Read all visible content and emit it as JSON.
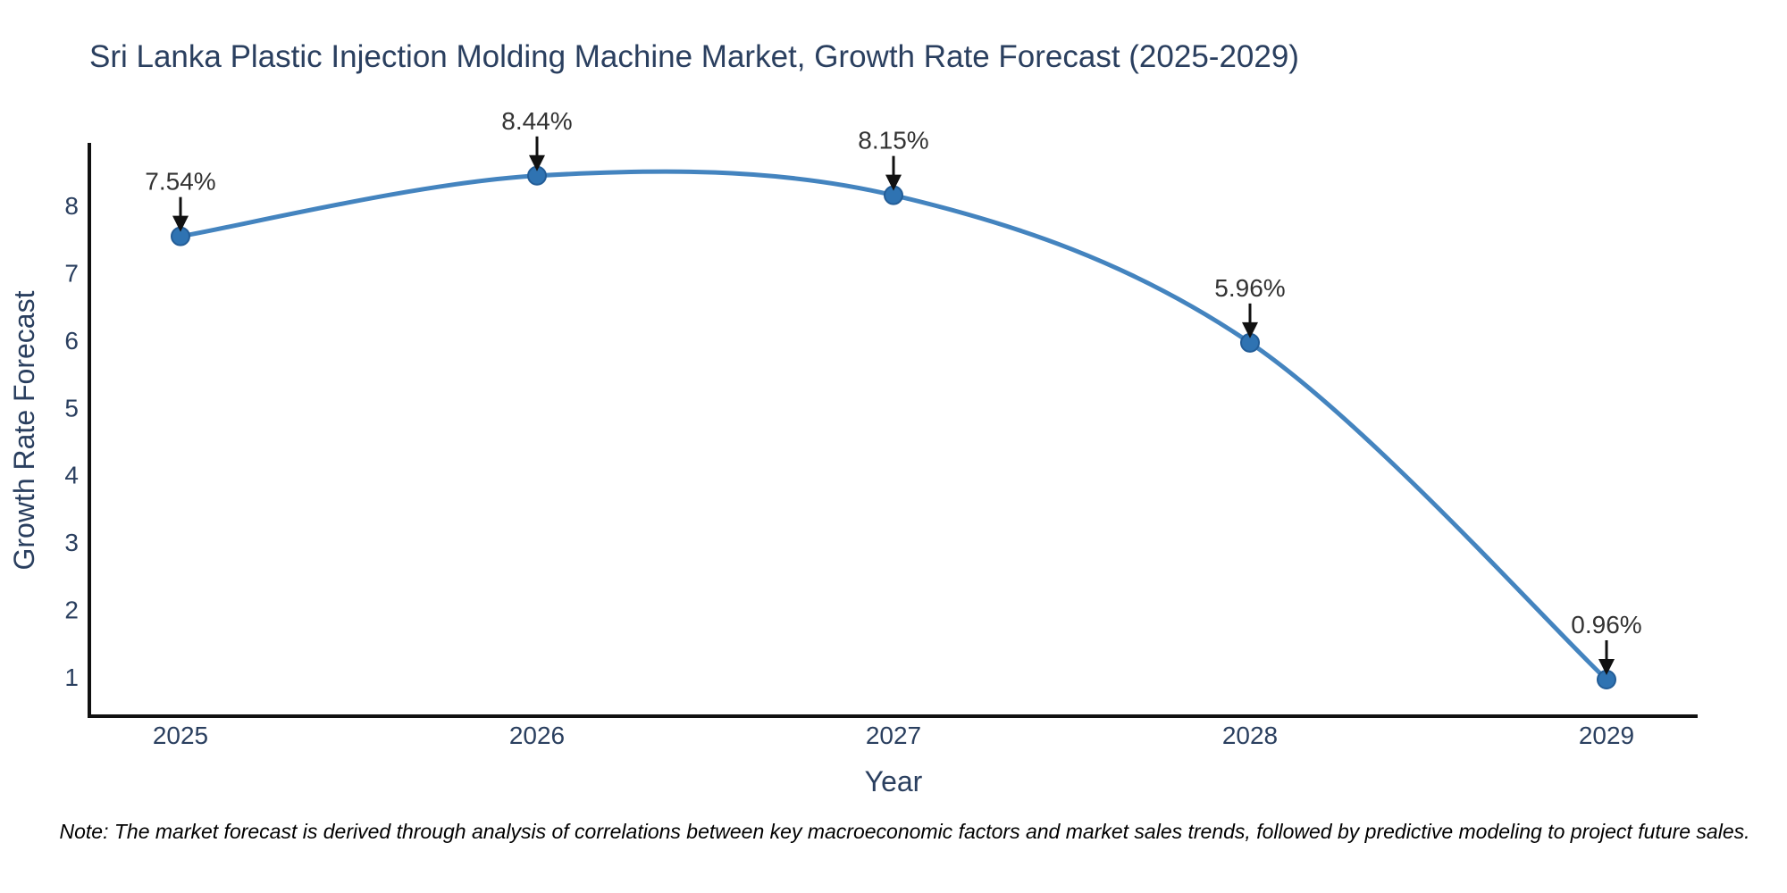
{
  "chart_data": {
    "type": "line",
    "title": "Sri Lanka Plastic Injection Molding Machine Market, Growth Rate Forecast (2025-2029)",
    "categories": [
      "2025",
      "2026",
      "2027",
      "2028",
      "2029"
    ],
    "series": [
      {
        "name": "Growth Rate Forecast",
        "values": [
          7.54,
          8.44,
          8.15,
          5.96,
          0.96
        ],
        "point_labels": [
          "7.54%",
          "8.44%",
          "8.15%",
          "5.96%",
          "0.96%"
        ]
      }
    ],
    "xlabel": "Year",
    "ylabel": "Growth Rate Forecast",
    "yticks": [
      1,
      2,
      3,
      4,
      5,
      6,
      7,
      8
    ],
    "ylim": [
      0.42,
      8.9
    ],
    "grid": false,
    "legend": "none",
    "line_shape": "spline",
    "annotation_arrows": true,
    "colors": {
      "title_text": "#2a3f5f",
      "axis_text": "#2a3f5f",
      "line": "#4484bf",
      "marker_fill": "#2f73b2",
      "marker_edge": "#235d97",
      "axis_spine": "#111111",
      "annotation_text": "#333333",
      "arrow": "#111111"
    }
  },
  "footnote": "Note: The market forecast is derived through analysis of correlations between key macroeconomic factors and market sales trends, followed by predictive modeling to project future sales."
}
